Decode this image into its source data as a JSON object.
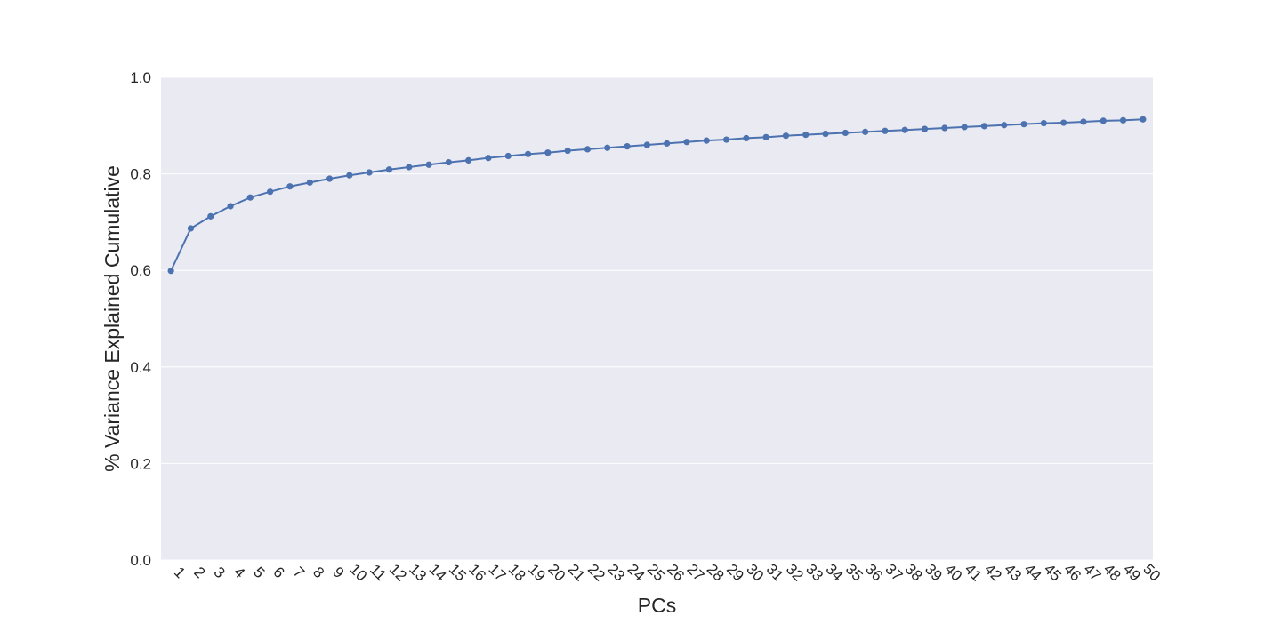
{
  "chart_data": {
    "type": "line",
    "xlabel": "PCs",
    "ylabel": "% Variance Explained Cumulative",
    "ylim": [
      0,
      1.0
    ],
    "yticks": [
      "0.0",
      "0.2",
      "0.4",
      "0.6",
      "0.8",
      "1.0"
    ],
    "grid": true,
    "colors": {
      "plot_background": "#EAEAF2",
      "grid": "#FFFFFF",
      "line": "#4C72B0"
    },
    "categories": [
      "1",
      "2",
      "3",
      "4",
      "5",
      "6",
      "7",
      "8",
      "9",
      "10",
      "11",
      "12",
      "13",
      "14",
      "15",
      "16",
      "17",
      "18",
      "19",
      "20",
      "21",
      "22",
      "23",
      "24",
      "25",
      "26",
      "27",
      "28",
      "29",
      "30",
      "31",
      "32",
      "33",
      "34",
      "35",
      "36",
      "37",
      "38",
      "39",
      "40",
      "41",
      "42",
      "43",
      "44",
      "45",
      "46",
      "47",
      "48",
      "49",
      "50"
    ],
    "values": [
      0.599,
      0.687,
      0.712,
      0.733,
      0.751,
      0.763,
      0.774,
      0.782,
      0.79,
      0.797,
      0.803,
      0.809,
      0.814,
      0.819,
      0.824,
      0.828,
      0.833,
      0.837,
      0.841,
      0.844,
      0.848,
      0.851,
      0.854,
      0.857,
      0.86,
      0.863,
      0.866,
      0.869,
      0.871,
      0.874,
      0.876,
      0.879,
      0.881,
      0.883,
      0.885,
      0.887,
      0.889,
      0.891,
      0.893,
      0.895,
      0.897,
      0.899,
      0.901,
      0.903,
      0.905,
      0.906,
      0.908,
      0.91,
      0.911,
      0.913
    ]
  }
}
